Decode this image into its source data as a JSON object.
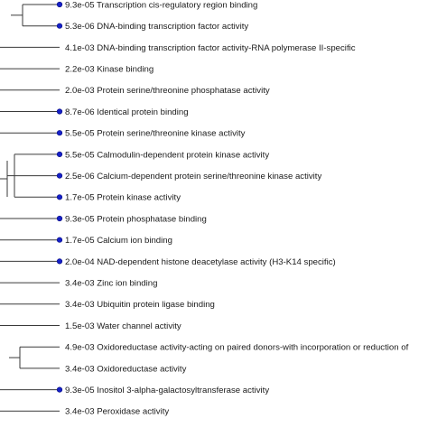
{
  "figure": {
    "colors": {
      "line": "#3a3a3a",
      "text": "#1a1a1a",
      "dot_fill": "#1520c8",
      "dot_stroke": "#0b0f80"
    }
  },
  "terms": [
    {
      "pvalue": "9.3e-05",
      "label": "Transcription cis-regulatory region binding",
      "dot": true
    },
    {
      "pvalue": "5.3e-06",
      "label": "DNA-binding transcription factor activity",
      "dot": true
    },
    {
      "pvalue": "4.1e-03",
      "label": "DNA-binding transcription factor activity-RNA polymerase II-specific",
      "dot": false
    },
    {
      "pvalue": "2.2e-03",
      "label": "Kinase binding",
      "dot": false
    },
    {
      "pvalue": "2.0e-03",
      "label": "Protein serine/threonine phosphatase activity",
      "dot": false
    },
    {
      "pvalue": "8.7e-06",
      "label": "Identical protein binding",
      "dot": true
    },
    {
      "pvalue": "5.5e-05",
      "label": "Protein serine/threonine kinase activity",
      "dot": true
    },
    {
      "pvalue": "5.5e-05",
      "label": "Calmodulin-dependent protein kinase activity",
      "dot": true
    },
    {
      "pvalue": "2.5e-06",
      "label": "Calcium-dependent protein serine/threonine kinase activity",
      "dot": true
    },
    {
      "pvalue": "1.7e-05",
      "label": "Protein kinase activity",
      "dot": true
    },
    {
      "pvalue": "9.3e-05",
      "label": "Protein phosphatase binding",
      "dot": true
    },
    {
      "pvalue": "1.7e-05",
      "label": "Calcium ion binding",
      "dot": true
    },
    {
      "pvalue": "2.0e-04",
      "label": "NAD-dependent histone deacetylase activity (H3-K14 specific)",
      "dot": true
    },
    {
      "pvalue": "3.4e-03",
      "label": "Zinc ion binding",
      "dot": false
    },
    {
      "pvalue": "3.4e-03",
      "label": "Ubiquitin protein ligase binding",
      "dot": false
    },
    {
      "pvalue": "1.5e-03",
      "label": "Water channel activity",
      "dot": false
    },
    {
      "pvalue": "4.9e-03",
      "label": "Oxidoreductase activity-acting on paired donors-with incorporation or reduction of",
      "dot": false
    },
    {
      "pvalue": "3.4e-03",
      "label": "Oxidoreductase activity",
      "dot": false
    },
    {
      "pvalue": "9.3e-05",
      "label": "Inositol 3-alpha-galactosyltransferase activity",
      "dot": true
    },
    {
      "pvalue": "3.4e-03",
      "label": "Peroxidase activity",
      "dot": false
    }
  ]
}
